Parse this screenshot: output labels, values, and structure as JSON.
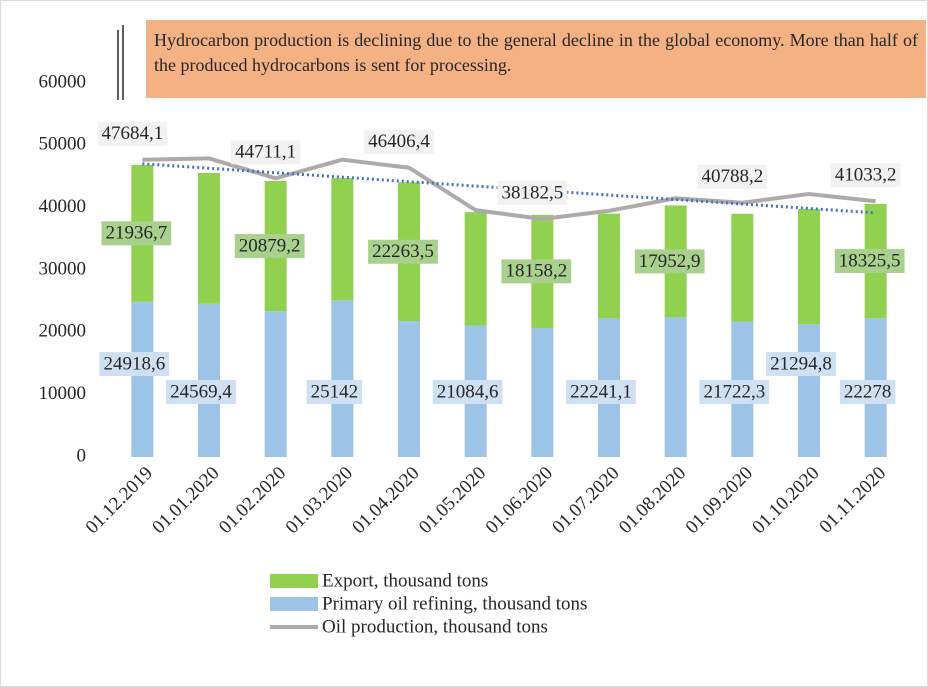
{
  "chart_data": {
    "type": "stacked-bar-line",
    "annotation": "Hydrocarbon production is declining due to the general decline in the global economy. More than half of the produced hydrocarbons is sent for processing.",
    "categories": [
      "01.12.2019",
      "01.01.2020",
      "01.02.2020",
      "01.03.2020",
      "01.04.2020",
      "01.05.2020",
      "01.06.2020",
      "01.07.2020",
      "01.08.2020",
      "01.09.2020",
      "01.10.2020",
      "01.11.2020"
    ],
    "series": [
      {
        "name": "Primary oil refining, thousand tons",
        "color": "#9dc3e6",
        "kind": "bar",
        "values": [
          24918.6,
          24569.4,
          23400,
          25142,
          21800,
          21084.6,
          20700,
          22241.1,
          22400,
          21722.3,
          21294.8,
          22278
        ],
        "value_labels": [
          "24918,6",
          "24569,4",
          null,
          "25142",
          null,
          "21084,6",
          null,
          "22241,1",
          null,
          "21722,3",
          "21294,8",
          "22278"
        ]
      },
      {
        "name": "Export, thousand tons",
        "color": "#92d050",
        "kind": "bar",
        "values": [
          21936.7,
          21000,
          20879.2,
          19600,
          22263.5,
          18200,
          18158.2,
          16800,
          17952.9,
          17300,
          18500,
          18325.5
        ],
        "value_labels": [
          "21936,7",
          null,
          "20879,2",
          null,
          "22263,5",
          null,
          "18158,2",
          null,
          "17952,9",
          null,
          null,
          "18325,5"
        ]
      },
      {
        "name": "Oil production, thousand tons",
        "color": "#aeaaaa",
        "kind": "line",
        "values": [
          47684.1,
          47900,
          44711.1,
          47700,
          46406.4,
          39600,
          38182.5,
          39500,
          41500,
          40788.2,
          42200,
          41033.2
        ],
        "value_labels": [
          "47684,1",
          null,
          "44711,1",
          null,
          "46406,4",
          null,
          "38182,5",
          null,
          null,
          "40788,2",
          null,
          "41033,2"
        ]
      }
    ],
    "trendline": {
      "series": 2,
      "color": "#4472c4"
    },
    "ylim": [
      0,
      60000
    ],
    "yticks": [
      0,
      10000,
      20000,
      30000,
      40000,
      50000,
      60000
    ]
  }
}
